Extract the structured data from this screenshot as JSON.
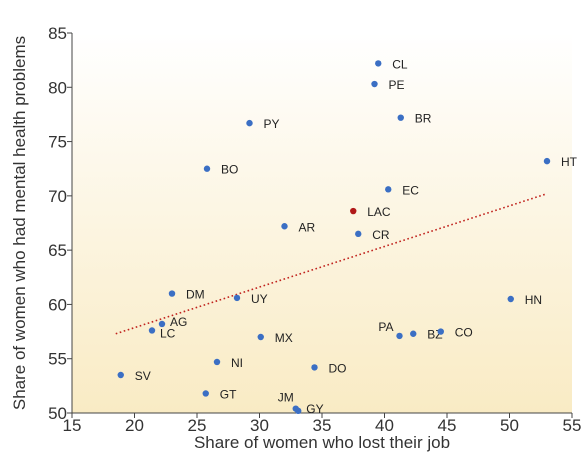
{
  "chart_data": {
    "type": "scatter",
    "title": "",
    "xlabel": "Share of women who lost their job",
    "ylabel": "Share of women who had mental health problems",
    "xlim": [
      15,
      55
    ],
    "ylim": [
      50,
      85
    ],
    "xticks": [
      15,
      20,
      25,
      30,
      35,
      40,
      45,
      50,
      55
    ],
    "yticks": [
      50,
      55,
      60,
      65,
      70,
      75,
      80,
      85
    ],
    "grid": false,
    "trendline": {
      "style": "dotted",
      "color": "#c0221d",
      "x": [
        18.5,
        53
      ],
      "y": [
        57.3,
        70.2
      ]
    },
    "colors": {
      "point": "#3b6fc4",
      "highlight": "#b01818",
      "background_top": "#ffffff",
      "background_bottom": "#f9ebc4"
    },
    "points": [
      {
        "label": "CL",
        "x": 39.5,
        "y": 82.2
      },
      {
        "label": "PE",
        "x": 39.2,
        "y": 80.3
      },
      {
        "label": "BR",
        "x": 41.3,
        "y": 77.2
      },
      {
        "label": "PY",
        "x": 29.2,
        "y": 76.7
      },
      {
        "label": "HT",
        "x": 53.0,
        "y": 73.2
      },
      {
        "label": "BO",
        "x": 25.8,
        "y": 72.5
      },
      {
        "label": "EC",
        "x": 40.3,
        "y": 70.6
      },
      {
        "label": "LAC",
        "x": 37.5,
        "y": 68.6,
        "highlight": true
      },
      {
        "label": "AR",
        "x": 32.0,
        "y": 67.2
      },
      {
        "label": "CR",
        "x": 37.9,
        "y": 66.5
      },
      {
        "label": "DM",
        "x": 23.0,
        "y": 61.0
      },
      {
        "label": "UY",
        "x": 28.2,
        "y": 60.6
      },
      {
        "label": "HN",
        "x": 50.1,
        "y": 60.5
      },
      {
        "label": "AG",
        "x": 22.2,
        "y": 58.2
      },
      {
        "label": "LC",
        "x": 21.4,
        "y": 57.6
      },
      {
        "label": "PA",
        "x": 41.2,
        "y": 57.1
      },
      {
        "label": "BZ",
        "x": 42.3,
        "y": 57.3
      },
      {
        "label": "CO",
        "x": 44.5,
        "y": 57.5
      },
      {
        "label": "MX",
        "x": 30.1,
        "y": 57.0
      },
      {
        "label": "NI",
        "x": 26.6,
        "y": 54.7
      },
      {
        "label": "DO",
        "x": 34.4,
        "y": 54.2
      },
      {
        "label": "SV",
        "x": 18.9,
        "y": 53.5
      },
      {
        "label": "GT",
        "x": 25.7,
        "y": 51.8
      },
      {
        "label": "JM",
        "x": 32.9,
        "y": 50.4
      },
      {
        "label": "GY",
        "x": 33.1,
        "y": 50.2
      }
    ]
  }
}
